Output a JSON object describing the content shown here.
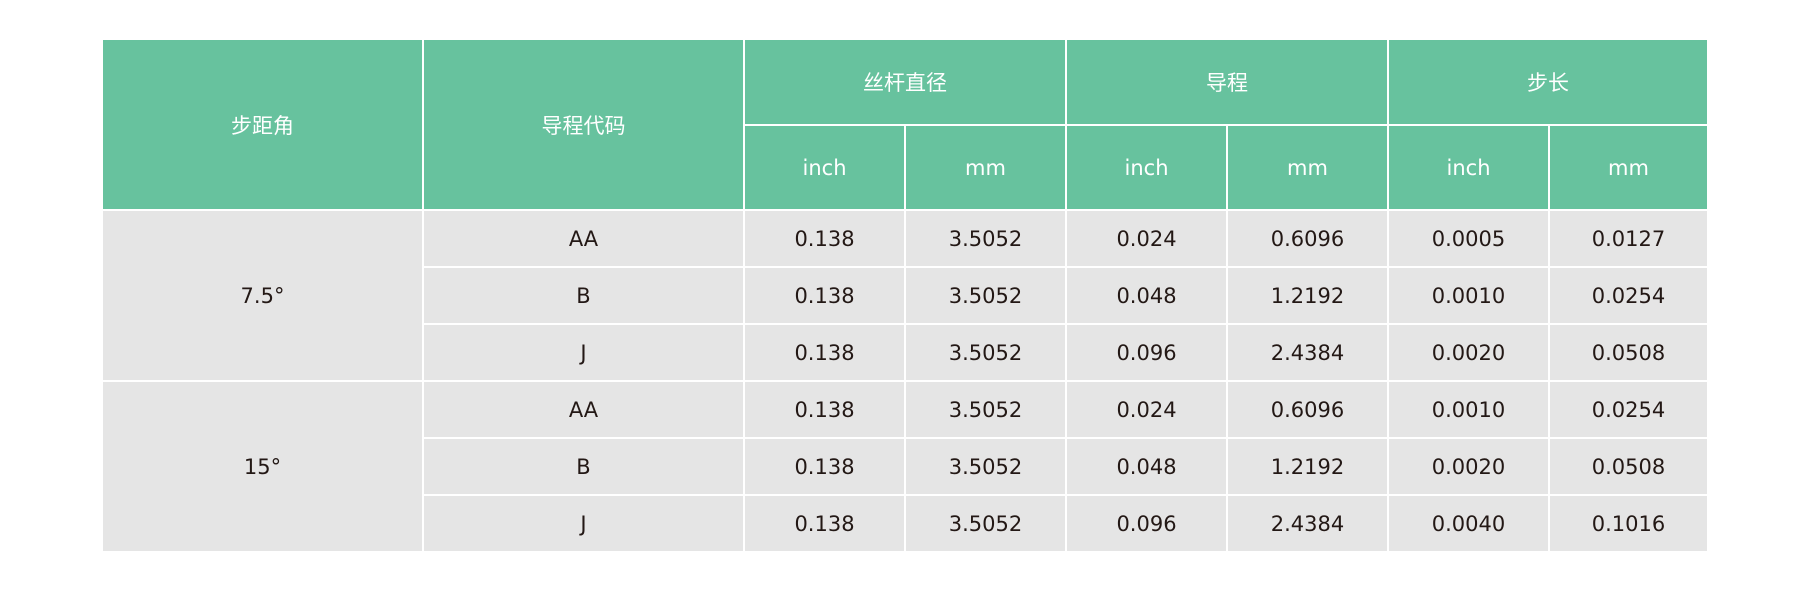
{
  "headers": {
    "step_angle": "步距角",
    "lead_code": "导程代码",
    "screw_diameter": "丝杆直径",
    "lead": "导程",
    "step": "步长",
    "inch": "inch",
    "mm": "mm"
  },
  "groups": [
    {
      "angle": "7.5°",
      "rows": [
        [
          "AA",
          "0.138",
          "3.5052",
          "0.024",
          "0.6096",
          "0.0005",
          "0.0127"
        ],
        [
          "B",
          "0.138",
          "3.5052",
          "0.048",
          "1.2192",
          "0.0010",
          "0.0254"
        ],
        [
          "J",
          "0.138",
          "3.5052",
          "0.096",
          "2.4384",
          "0.0020",
          "0.0508"
        ]
      ]
    },
    {
      "angle": "15°",
      "rows": [
        [
          "AA",
          "0.138",
          "3.5052",
          "0.024",
          "0.6096",
          "0.0010",
          "0.0254"
        ],
        [
          "B",
          "0.138",
          "3.5052",
          "0.048",
          "1.2192",
          "0.0020",
          "0.0508"
        ],
        [
          "J",
          "0.138",
          "3.5052",
          "0.096",
          "2.4384",
          "0.0040",
          "0.1016"
        ]
      ]
    }
  ],
  "colors": {
    "header_bg": "#67c29e",
    "cell_bg": "#e5e5e5",
    "text": "#231815"
  }
}
